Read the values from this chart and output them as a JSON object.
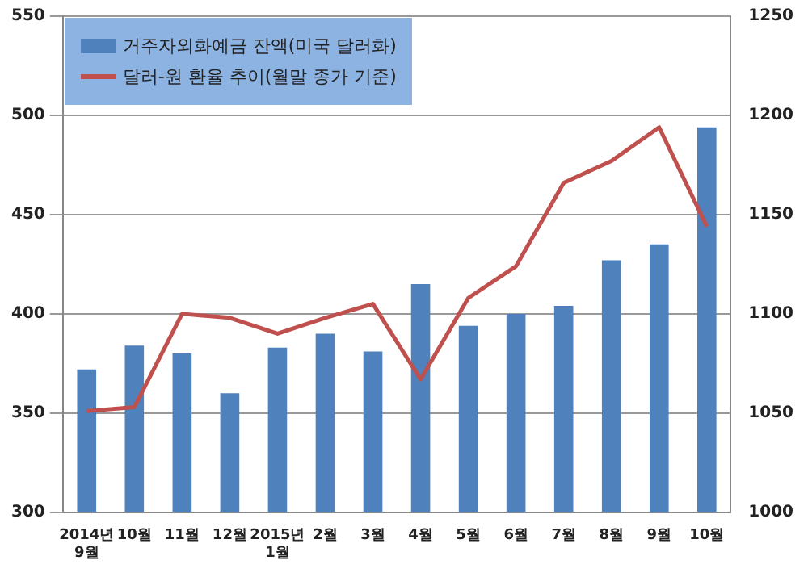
{
  "chart_data": {
    "type": "bar",
    "categories": [
      "2014년\n9월",
      "10월",
      "11월",
      "12월",
      "2015년\n1월",
      "2월",
      "3월",
      "4월",
      "5월",
      "6월",
      "7월",
      "8월",
      "9월",
      "10월"
    ],
    "series": [
      {
        "name": "거주자외화예금 잔액(미국 달러화)",
        "color": "#4f81bd",
        "values": [
          372,
          384,
          380,
          360,
          383,
          390,
          381,
          415,
          394,
          400,
          404,
          427,
          435,
          494
        ]
      },
      {
        "name": "달러-원 환율 추이(월말 종가 기준)",
        "type": "line",
        "axis": "y2",
        "color": "#c0504d",
        "values": [
          1051,
          1053,
          1100,
          1098,
          1090,
          1098,
          1105,
          1067,
          1108,
          1124,
          1166,
          1177,
          1194,
          1144
        ]
      }
    ],
    "ylim": [
      300,
      550
    ],
    "yticks": [
      300,
      350,
      400,
      450,
      500,
      550
    ],
    "y2lim": [
      1000,
      1250
    ],
    "y2ticks": [
      1000,
      1050,
      1100,
      1150,
      1200,
      1250
    ],
    "grid": "y",
    "legend": "top left",
    "marker": "none",
    "line_style": "solid"
  }
}
